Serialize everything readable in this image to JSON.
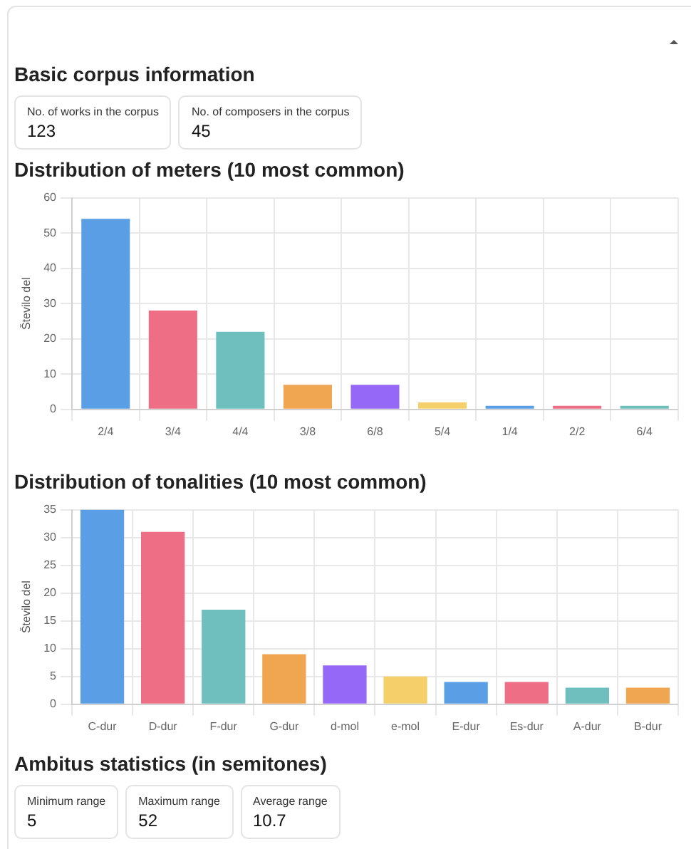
{
  "chart_data": [
    {
      "type": "other",
      "title": "Basic corpus information",
      "annotations": [
        "No. of works in the corpus",
        "123",
        "No. of composers in the corpus",
        "45"
      ]
    },
    {
      "type": "bar",
      "title": "Distribution of meters (10 most common)",
      "ylabel": "Število del",
      "categories": [
        "2/4",
        "3/4",
        "4/4",
        "3/8",
        "6/8",
        "5/4",
        "1/4",
        "2/2",
        "6/4"
      ],
      "values": [
        54,
        28,
        22,
        7,
        7,
        2,
        1,
        1,
        1
      ],
      "colors": [
        "#5a9fe6",
        "#ed6e85",
        "#6fbfbf",
        "#f0a550",
        "#9568f8",
        "#f5cf6a",
        "#5a9fe6",
        "#ed6e85",
        "#6fbfbf"
      ],
      "ylim": [
        0,
        60
      ],
      "yticks": [
        0,
        10,
        20,
        30,
        40,
        50,
        60
      ],
      "grid": true,
      "legend": false
    },
    {
      "type": "bar",
      "title": "Distribution of tonalities (10 most common)",
      "ylabel": "Število del",
      "categories": [
        "C-dur",
        "D-dur",
        "F-dur",
        "G-dur",
        "d-mol",
        "e-mol",
        "E-dur",
        "Es-dur",
        "A-dur",
        "B-dur"
      ],
      "values": [
        35,
        31,
        17,
        9,
        7,
        5,
        4,
        4,
        3,
        3
      ],
      "colors": [
        "#5a9fe6",
        "#ed6e85",
        "#6fbfbf",
        "#f0a550",
        "#9568f8",
        "#f5cf6a",
        "#5a9fe6",
        "#ed6e85",
        "#6fbfbf",
        "#f0a550"
      ],
      "ylim": [
        0,
        35
      ],
      "yticks": [
        0,
        5,
        10,
        15,
        20,
        25,
        30,
        35
      ],
      "grid": true,
      "legend": false
    },
    {
      "type": "other",
      "title": "Ambitus statistics (in semitones)",
      "annotations": [
        "Minimum range",
        "5",
        "Maximum range",
        "52",
        "Average range",
        "10.7"
      ]
    }
  ]
}
